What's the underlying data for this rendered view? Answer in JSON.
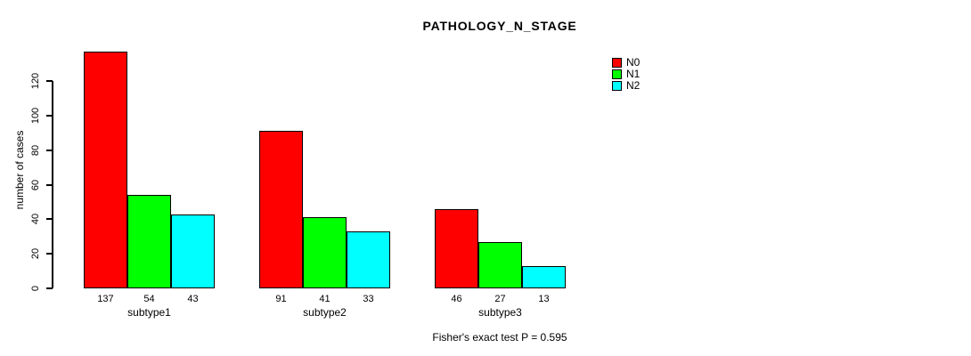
{
  "title": "PATHOLOGY_N_STAGE",
  "ylabel": "number of cases",
  "footer": "Fisher's exact test P = 0.595",
  "colors": {
    "N0": "#FF0000",
    "N1": "#00FF00",
    "N2": "#00FFFF",
    "axis": "#000000",
    "background": "#FFFFFF"
  },
  "legend": {
    "position": "top-right",
    "items": [
      {
        "label": "N0",
        "color": "#FF0000"
      },
      {
        "label": "N1",
        "color": "#00FF00"
      },
      {
        "label": "N2",
        "color": "#00FFFF"
      }
    ]
  },
  "chart_data": {
    "type": "bar",
    "grouped": true,
    "title": "PATHOLOGY_N_STAGE",
    "xlabel": "",
    "ylabel": "number of cases",
    "categories": [
      "subtype1",
      "subtype2",
      "subtype3"
    ],
    "series": [
      {
        "name": "N0",
        "color": "#FF0000",
        "values": [
          137,
          91,
          46
        ]
      },
      {
        "name": "N1",
        "color": "#00FF00",
        "values": [
          54,
          41,
          27
        ]
      },
      {
        "name": "N2",
        "color": "#00FFFF",
        "values": [
          43,
          33,
          13
        ]
      }
    ],
    "bar_value_labels": [
      [
        137,
        54,
        43
      ],
      [
        91,
        41,
        33
      ],
      [
        46,
        27,
        13
      ]
    ],
    "ylim": [
      0,
      137
    ],
    "yticks": [
      0,
      20,
      40,
      60,
      80,
      100,
      120
    ],
    "grid": false,
    "legend_position": "top-right",
    "annotation": "Fisher's exact test P = 0.595"
  }
}
